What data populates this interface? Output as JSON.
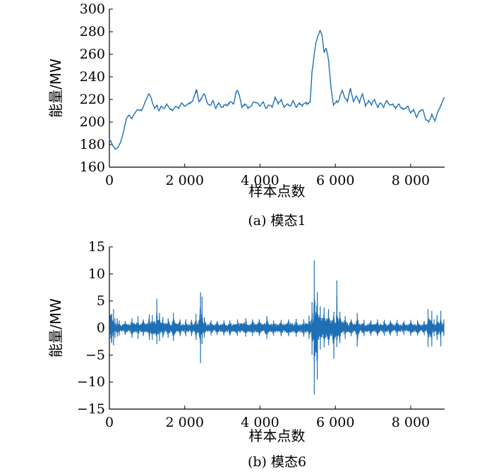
{
  "chart_data": [
    {
      "type": "line",
      "caption": "(a)  模态1",
      "xlabel": "样本点数",
      "ylabel": "能量/MW",
      "xlim": [
        0,
        8900
      ],
      "ylim": [
        160,
        300
      ],
      "xticks": [
        0,
        2000,
        4000,
        6000,
        8000
      ],
      "xtick_labels": [
        "0",
        "2 000",
        "4 000",
        "6 000",
        "8 000"
      ],
      "yticks": [
        160,
        180,
        200,
        220,
        240,
        260,
        280,
        300
      ],
      "ytick_labels": [
        "160",
        "180",
        "200",
        "220",
        "240",
        "260",
        "280",
        "300"
      ],
      "color": "#1f6fb5",
      "series": [
        {
          "x": [
            0,
            80,
            150,
            220,
            300,
            380,
            450,
            520,
            600,
            680,
            760,
            850,
            950,
            1050,
            1120,
            1200,
            1260,
            1320,
            1380,
            1450,
            1520,
            1600,
            1680,
            1760,
            1840,
            1920,
            2000,
            2100,
            2200,
            2280,
            2320,
            2380,
            2450,
            2520,
            2600,
            2680,
            2750,
            2820,
            2900,
            2980,
            3060,
            3140,
            3220,
            3300,
            3360,
            3400,
            3450,
            3520,
            3600,
            3680,
            3760,
            3840,
            3920,
            4000,
            4080,
            4160,
            4240,
            4320,
            4400,
            4480,
            4560,
            4640,
            4720,
            4800,
            4880,
            4960,
            5040,
            5120,
            5200,
            5280,
            5330,
            5380,
            5420,
            5480,
            5540,
            5600,
            5650,
            5700,
            5760,
            5820,
            5880,
            5950,
            6020,
            6080,
            6130,
            6180,
            6240,
            6320,
            6400,
            6480,
            6560,
            6640,
            6720,
            6800,
            6880,
            6960,
            7040,
            7120,
            7200,
            7280,
            7360,
            7440,
            7520,
            7600,
            7680,
            7760,
            7840,
            7920,
            8000,
            8080,
            8160,
            8240,
            8320,
            8400,
            8480,
            8560,
            8640,
            8720,
            8780,
            8840,
            8900
          ],
          "y": [
            185,
            180,
            176,
            177,
            182,
            192,
            203,
            206,
            203,
            208,
            211,
            210,
            218,
            225,
            220,
            212,
            215,
            210,
            214,
            212,
            216,
            212,
            210,
            214,
            212,
            217,
            214,
            216,
            218,
            226,
            228,
            218,
            221,
            225,
            217,
            215,
            219,
            212,
            217,
            213,
            215,
            215,
            218,
            216,
            226,
            228,
            224,
            213,
            216,
            212,
            214,
            218,
            217,
            214,
            218,
            212,
            215,
            213,
            222,
            216,
            220,
            213,
            216,
            214,
            219,
            213,
            217,
            214,
            217,
            216,
            218,
            245,
            255,
            270,
            277,
            281,
            276,
            262,
            265,
            255,
            232,
            215,
            218,
            218,
            224,
            228,
            222,
            218,
            230,
            218,
            223,
            217,
            225,
            214,
            219,
            215,
            220,
            213,
            217,
            213,
            219,
            215,
            216,
            212,
            216,
            212,
            212,
            214,
            208,
            211,
            204,
            210,
            211,
            202,
            200,
            207,
            201,
            209,
            213,
            218,
            222
          ]
        }
      ]
    },
    {
      "type": "line",
      "caption": "(b)  模态6",
      "xlabel": "样本点数",
      "ylabel": "能量/MW",
      "xlim": [
        0,
        8900
      ],
      "ylim": [
        -15,
        15
      ],
      "xticks": [
        0,
        2000,
        4000,
        6000,
        8000
      ],
      "xtick_labels": [
        "0",
        "2 000",
        "4 000",
        "6 000",
        "8 000"
      ],
      "yticks": [
        -15,
        -10,
        -5,
        0,
        5,
        10,
        15
      ],
      "ytick_labels": [
        "−15",
        "−10",
        "−5",
        "0",
        "5",
        "10",
        "15"
      ],
      "color": "#1f6fb5",
      "series": [
        {
          "x": [
            60,
            110,
            150,
            210,
            260,
            420,
            600,
            760,
            900,
            1060,
            1140,
            1260,
            1330,
            1420,
            1560,
            1700,
            1880,
            2030,
            2180,
            2300,
            2420,
            2460,
            2520,
            2700,
            2860,
            3040,
            3200,
            3400,
            3620,
            3800,
            3980,
            4180,
            4360,
            4560,
            4760,
            4960,
            5160,
            5300,
            5380,
            5440,
            5520,
            5600,
            5700,
            5820,
            5960,
            6040,
            6120,
            6260,
            6420,
            6580,
            6760,
            6940,
            7120,
            7300,
            7460,
            7640,
            7820,
            8000,
            8180,
            8360,
            8460,
            8560,
            8620,
            8700,
            8800,
            8880
          ],
          "amp": [
            2.6,
            3.5,
            1.8,
            1.8,
            1.4,
            1.3,
            1.8,
            2.2,
            1.6,
            2.5,
            2.4,
            5.4,
            2.8,
            2.0,
            1.8,
            2.8,
            1.6,
            1.6,
            1.5,
            2.6,
            6.6,
            5.8,
            2.0,
            1.4,
            1.3,
            1.4,
            1.4,
            1.6,
            1.8,
            1.6,
            1.6,
            2.2,
            1.4,
            1.5,
            1.6,
            1.7,
            1.6,
            2.3,
            4.8,
            12.5,
            6.6,
            4.0,
            3.8,
            3.5,
            3.0,
            8.8,
            3.0,
            2.2,
            1.6,
            2.8,
            1.5,
            1.4,
            1.6,
            1.5,
            1.4,
            1.5,
            1.3,
            1.5,
            1.4,
            1.3,
            3.5,
            3.2,
            1.6,
            2.4,
            3.2,
            1.6
          ],
          "neg": [
            -2.8,
            -3.2,
            -1.8,
            -1.6,
            -1.4,
            -1.3,
            -1.8,
            -2.0,
            -1.5,
            -2.2,
            -2.2,
            -3.0,
            -2.4,
            -1.8,
            -1.8,
            -2.4,
            -1.5,
            -1.5,
            -1.5,
            -2.2,
            -6.5,
            -3.0,
            -1.8,
            -1.4,
            -1.3,
            -1.4,
            -1.4,
            -1.5,
            -1.6,
            -1.5,
            -1.5,
            -2.0,
            -1.4,
            -1.5,
            -1.5,
            -1.6,
            -1.6,
            -2.0,
            -5.0,
            -12.3,
            -9.5,
            -4.0,
            -3.6,
            -3.2,
            -5.7,
            -3.5,
            -2.8,
            -2.0,
            -1.5,
            -3.4,
            -1.5,
            -1.4,
            -1.5,
            -1.4,
            -1.4,
            -1.5,
            -1.3,
            -1.4,
            -1.4,
            -1.3,
            -3.5,
            -3.4,
            -1.5,
            -2.2,
            -3.4,
            -1.5
          ]
        }
      ]
    }
  ]
}
